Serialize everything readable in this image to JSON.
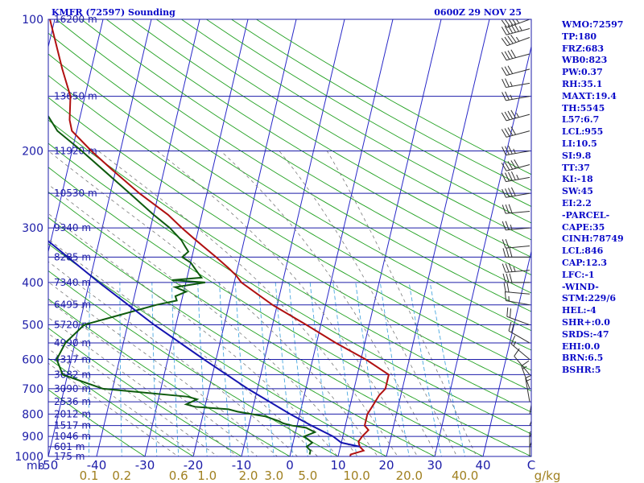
{
  "header": {
    "title": "KMFR (72597) Sounding",
    "time": "0600Z 29 NOV 25"
  },
  "stats": [
    "WMO:72597",
    "TP:180",
    "FRZ:683",
    "WB0:823",
    "PW:0.37",
    "RH:35.1",
    "MAXT:19.4",
    "TH:5545",
    "L57:6.7",
    "LCL:955",
    "LI:10.5",
    "SI:9.8",
    "TT:37",
    "KI:-18",
    "SW:45",
    "EI:2.2",
    "-PARCEL-",
    "CAPE:35",
    "CINH:78749",
    "LCL:846",
    "CAP:12.3",
    "LFC:-1",
    "-WIND-",
    "STM:229/6",
    "HEL:-4",
    "SHR+:0.0",
    "SRDS:-47",
    "EHI:0.0",
    "BRN:6.5",
    "BSHR:5"
  ],
  "colors": {
    "isobar": "#1c1ca8",
    "isotherm": "#2828c8",
    "dry_adiabat": "#20a020",
    "moist_adiabat": "#7a7a7a",
    "mixing_ratio": "#4aa8e0",
    "temperature": "#b01010",
    "dewpoint": "#0d5a0d",
    "parcel": "#1515b0",
    "wind_barb": "#303030",
    "pressure_labels": "#1c1ca8",
    "height_labels": "#1c1ca8",
    "temp_labels": "#1c1ca8",
    "mixing_labels": "#a08020",
    "stats_text": "#0a0ac8"
  },
  "chart_data": {
    "type": "line",
    "x_unit": "C",
    "y_unit": "mb",
    "y_scale": "log",
    "ylim": [
      1000,
      100
    ],
    "xlim": [
      -50,
      50
    ],
    "pressure_ticks": [
      "100",
      "200",
      "300",
      "400",
      "500",
      "600",
      "700",
      "800",
      "900",
      "1000"
    ],
    "pressure_values": [
      100,
      200,
      300,
      400,
      500,
      600,
      700,
      800,
      900,
      1000
    ],
    "pressure_axis_unit": "mb",
    "temperature_ticks": [
      "-50",
      "-40",
      "-30",
      "-20",
      "-10",
      "0",
      "10",
      "20",
      "30",
      "40",
      "C"
    ],
    "temperature_values": [
      -50,
      -40,
      -30,
      -20,
      -10,
      0,
      10,
      20,
      30,
      40
    ],
    "mixing_ratio_labels": [
      "0.1",
      "0.2",
      "0.6",
      "1.0",
      "2.0",
      "3.0",
      "5.0",
      "10.0",
      "20.0",
      "40.0",
      "g/kg"
    ],
    "mixing_ratio_values": [
      0.1,
      0.2,
      0.6,
      1.0,
      2.0,
      3.0,
      5.0,
      10.0,
      20.0,
      40.0
    ],
    "height_labels": [
      {
        "p": 100,
        "label": "16200 m"
      },
      {
        "p": 150,
        "label": "13650 m"
      },
      {
        "p": 200,
        "label": "11920 m"
      },
      {
        "p": 250,
        "label": "10530 m"
      },
      {
        "p": 300,
        "label": "9340 m"
      },
      {
        "p": 350,
        "label": "8285 m"
      },
      {
        "p": 400,
        "label": "7340 m"
      },
      {
        "p": 450,
        "label": "6495 m"
      },
      {
        "p": 500,
        "label": "5720 m"
      },
      {
        "p": 550,
        "label": "4990 m"
      },
      {
        "p": 600,
        "label": "4317 m"
      },
      {
        "p": 650,
        "label": "3682 m"
      },
      {
        "p": 700,
        "label": "3090 m"
      },
      {
        "p": 750,
        "label": "2536 m"
      },
      {
        "p": 800,
        "label": "2012 m"
      },
      {
        "p": 850,
        "label": "1517 m"
      },
      {
        "p": 900,
        "label": "1046 m"
      },
      {
        "p": 950,
        "label": "601 m"
      },
      {
        "p": 1000,
        "label": "175 m"
      }
    ],
    "series": [
      {
        "key": "temperature",
        "points": [
          [
            1000,
            12.5
          ],
          [
            990,
            12.5
          ],
          [
            970,
            15
          ],
          [
            950,
            14
          ],
          [
            925,
            13.5
          ],
          [
            900,
            14
          ],
          [
            870,
            15
          ],
          [
            850,
            14
          ],
          [
            825,
            14
          ],
          [
            800,
            14
          ],
          [
            775,
            14.5
          ],
          [
            750,
            15
          ],
          [
            725,
            15.5
          ],
          [
            700,
            16.5
          ],
          [
            650,
            16.5
          ],
          [
            600,
            11
          ],
          [
            550,
            4
          ],
          [
            500,
            -3
          ],
          [
            450,
            -11
          ],
          [
            400,
            -18.5
          ],
          [
            385,
            -20
          ],
          [
            370,
            -22
          ],
          [
            350,
            -25
          ],
          [
            320,
            -30
          ],
          [
            300,
            -33.5
          ],
          [
            280,
            -37
          ],
          [
            250,
            -44
          ],
          [
            220,
            -51
          ],
          [
            200,
            -56
          ],
          [
            180,
            -61
          ],
          [
            170,
            -62
          ],
          [
            150,
            -63
          ],
          [
            130,
            -66
          ],
          [
            100,
            -71
          ]
        ]
      },
      {
        "key": "dewpoint",
        "points": [
          [
            990,
            4
          ],
          [
            970,
            4
          ],
          [
            950,
            3
          ],
          [
            930,
            4
          ],
          [
            900,
            2
          ],
          [
            880,
            4
          ],
          [
            860,
            2
          ],
          [
            850,
            -1
          ],
          [
            840,
            -3
          ],
          [
            830,
            -4
          ],
          [
            810,
            -7
          ],
          [
            800,
            -10
          ],
          [
            790,
            -13
          ],
          [
            780,
            -15
          ],
          [
            770,
            -22
          ],
          [
            760,
            -24
          ],
          [
            740,
            -22
          ],
          [
            730,
            -24
          ],
          [
            700,
            -42
          ],
          [
            650,
            -51
          ],
          [
            600,
            -53
          ],
          [
            550,
            -52
          ],
          [
            500,
            -49
          ],
          [
            450,
            -35
          ],
          [
            440,
            -31
          ],
          [
            430,
            -31.5
          ],
          [
            420,
            -29.5
          ],
          [
            410,
            -32
          ],
          [
            400,
            -26
          ],
          [
            395,
            -33
          ],
          [
            390,
            -27
          ],
          [
            380,
            -28
          ],
          [
            370,
            -29
          ],
          [
            360,
            -30
          ],
          [
            350,
            -32
          ],
          [
            340,
            -31
          ],
          [
            330,
            -32
          ],
          [
            320,
            -33
          ],
          [
            300,
            -36
          ],
          [
            280,
            -40
          ],
          [
            250,
            -46
          ],
          [
            200,
            -58
          ],
          [
            180,
            -64
          ],
          [
            160,
            -68
          ],
          [
            150,
            -74
          ],
          [
            130,
            -72
          ],
          [
            100,
            -81
          ]
        ]
      },
      {
        "key": "parcel",
        "points": [
          [
            950,
            14
          ],
          [
            930,
            10
          ],
          [
            900,
            8
          ],
          [
            850,
            3
          ],
          [
            800,
            -2
          ],
          [
            700,
            -12
          ],
          [
            600,
            -22.5
          ],
          [
            500,
            -34.5
          ],
          [
            400,
            -48
          ],
          [
            300,
            -64.5
          ],
          [
            200,
            -86
          ],
          [
            150,
            -100
          ],
          [
            120,
            -109
          ]
        ]
      }
    ],
    "wind_barbs": [
      {
        "p": 100,
        "dir": 250,
        "kt": 50
      },
      {
        "p": 105,
        "dir": 255,
        "kt": 55
      },
      {
        "p": 110,
        "dir": 250,
        "kt": 45
      },
      {
        "p": 120,
        "dir": 255,
        "kt": 40
      },
      {
        "p": 130,
        "dir": 255,
        "kt": 30
      },
      {
        "p": 140,
        "dir": 260,
        "kt": 25
      },
      {
        "p": 150,
        "dir": 260,
        "kt": 25
      },
      {
        "p": 165,
        "dir": 255,
        "kt": 45
      },
      {
        "p": 180,
        "dir": 255,
        "kt": 40
      },
      {
        "p": 200,
        "dir": 260,
        "kt": 35
      },
      {
        "p": 215,
        "dir": 255,
        "kt": 50
      },
      {
        "p": 230,
        "dir": 260,
        "kt": 45
      },
      {
        "p": 250,
        "dir": 260,
        "kt": 40
      },
      {
        "p": 275,
        "dir": 265,
        "kt": 30
      },
      {
        "p": 300,
        "dir": 265,
        "kt": 25
      },
      {
        "p": 330,
        "dir": 265,
        "kt": 20
      },
      {
        "p": 350,
        "dir": 270,
        "kt": 30
      },
      {
        "p": 375,
        "dir": 265,
        "kt": 35
      },
      {
        "p": 400,
        "dir": 270,
        "kt": 30
      },
      {
        "p": 425,
        "dir": 275,
        "kt": 20
      },
      {
        "p": 450,
        "dir": 280,
        "kt": 15
      },
      {
        "p": 500,
        "dir": 290,
        "kt": 20
      },
      {
        "p": 550,
        "dir": 300,
        "kt": 20
      },
      {
        "p": 600,
        "dir": 310,
        "kt": 15
      },
      {
        "p": 650,
        "dir": 320,
        "kt": 10
      },
      {
        "p": 700,
        "dir": 340,
        "kt": 15
      },
      {
        "p": 750,
        "dir": 350,
        "kt": 15
      },
      {
        "p": 800,
        "dir": 10,
        "kt": 10
      },
      {
        "p": 850,
        "dir": 20,
        "kt": 5
      },
      {
        "p": 900,
        "dir": 30,
        "kt": 10
      },
      {
        "p": 950,
        "dir": 20,
        "kt": 10
      },
      {
        "p": 1000,
        "dir": 360,
        "kt": 5
      }
    ]
  }
}
